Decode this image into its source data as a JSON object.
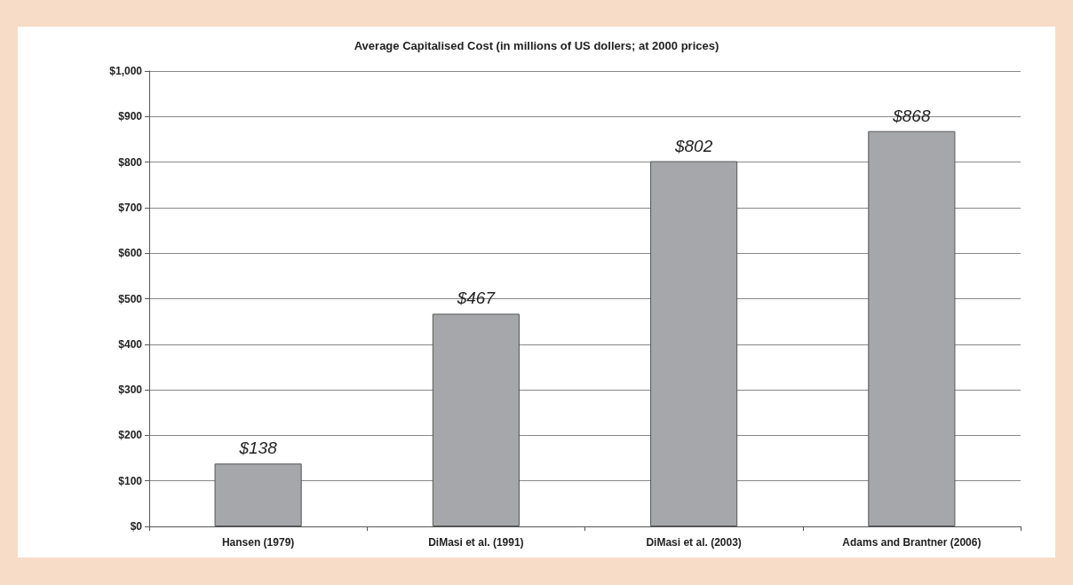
{
  "chart_data": {
    "type": "bar",
    "title": "Average Capitalised Cost (in millions of US dollers; at 2000 prices)",
    "categories": [
      "Hansen (1979)",
      "DiMasi et al. (1991)",
      "DiMasi et al. (2003)",
      "Adams and Brantner (2006)"
    ],
    "values": [
      138,
      467,
      802,
      868
    ],
    "value_labels": [
      "$138",
      "$467",
      "$802",
      "$868"
    ],
    "color": "#a6a7aa",
    "ylim": [
      0,
      1000
    ],
    "yticks": [
      {
        "value": 0,
        "label": "$0"
      },
      {
        "value": 100,
        "label": "$100"
      },
      {
        "value": 200,
        "label": "$200"
      },
      {
        "value": 300,
        "label": "$300"
      },
      {
        "value": 400,
        "label": "$400"
      },
      {
        "value": 500,
        "label": "$500"
      },
      {
        "value": 600,
        "label": "$600"
      },
      {
        "value": 700,
        "label": "$700"
      },
      {
        "value": 800,
        "label": "$800"
      },
      {
        "value": 900,
        "label": "$900"
      },
      {
        "value": 1000,
        "label": "$1,000"
      }
    ],
    "grid": "y"
  }
}
